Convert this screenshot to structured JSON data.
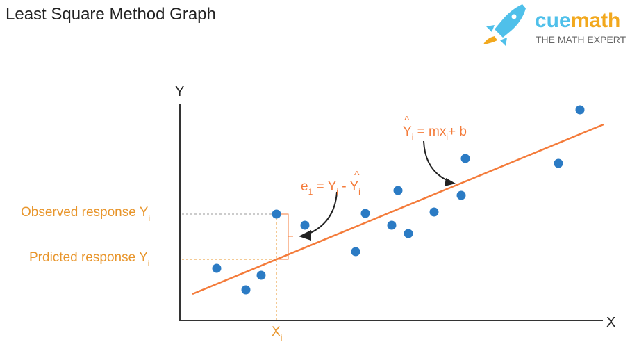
{
  "title": "Least Square Method Graph",
  "logo": {
    "brand_a": "cue",
    "brand_b": "math",
    "tagline": "THE MATH EXPERT"
  },
  "axes": {
    "x": "X",
    "y": "Y"
  },
  "labels": {
    "observed": "Observed response Y",
    "predicted": "Prdicted response Y",
    "sub_i": "i",
    "xi": "X",
    "error_eq_a": "e",
    "error_eq_sub": "1",
    "error_eq_b": " = Y",
    "error_eq_c": " - Y",
    "hat": "^",
    "line_eq_a": "Y",
    "line_eq_b": " = mx",
    "line_eq_c": "+ b"
  },
  "colors": {
    "point": "#2B7BC4",
    "line": "#F47B3A",
    "label": "#E8952B",
    "axis": "#333333"
  }
}
